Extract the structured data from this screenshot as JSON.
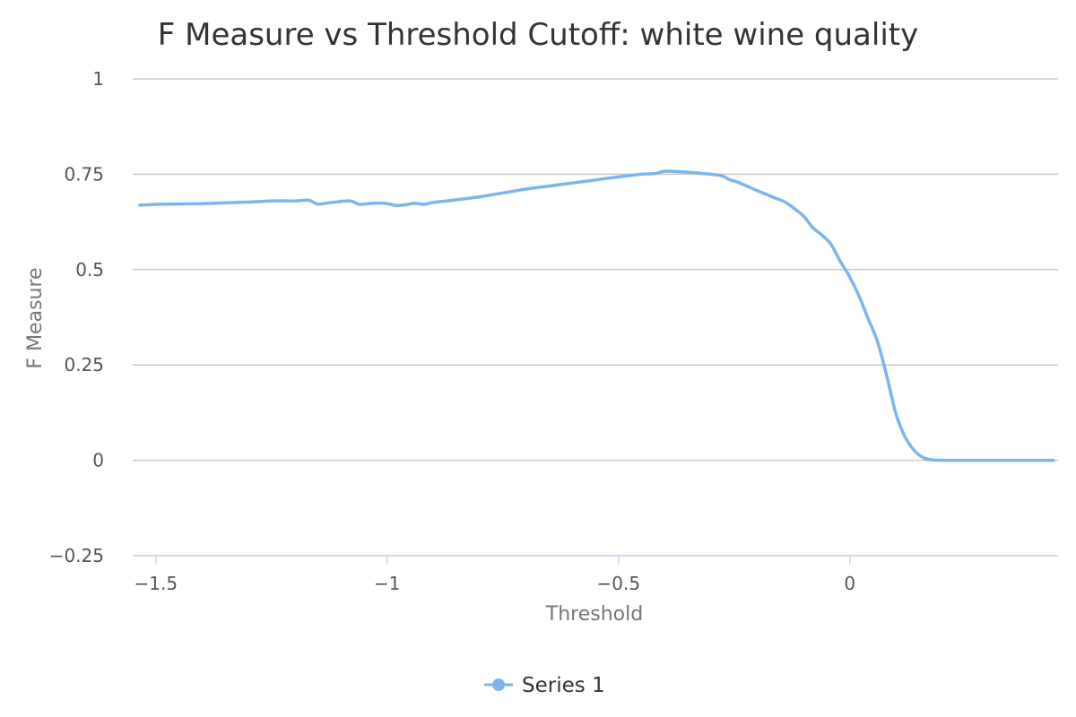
{
  "chart_data": {
    "type": "line",
    "title": "F Measure vs Threshold Cutoff: white wine quality",
    "xlabel": "Threshold",
    "ylabel": "F Measure",
    "xlim": [
      -1.55,
      0.45
    ],
    "ylim": [
      -0.25,
      1
    ],
    "x_ticks": [
      -1.5,
      -1,
      -0.5,
      0
    ],
    "x_tick_labels": [
      "−1.5",
      "−1",
      "−0.5",
      "0"
    ],
    "y_ticks": [
      -0.25,
      0,
      0.25,
      0.5,
      0.75,
      1
    ],
    "y_tick_labels": [
      "−0.25",
      "0",
      "0.25",
      "0.5",
      "0.75",
      "1"
    ],
    "grid": true,
    "legend_position": "bottom-center",
    "series": [
      {
        "name": "Series 1",
        "color": "#7cb5ec",
        "x": [
          -1.535,
          -1.5,
          -1.45,
          -1.4,
          -1.35,
          -1.3,
          -1.25,
          -1.2,
          -1.17,
          -1.15,
          -1.12,
          -1.08,
          -1.06,
          -1.03,
          -1.0,
          -0.98,
          -0.96,
          -0.94,
          -0.92,
          -0.9,
          -0.85,
          -0.8,
          -0.75,
          -0.72,
          -0.7,
          -0.65,
          -0.6,
          -0.55,
          -0.5,
          -0.45,
          -0.42,
          -0.4,
          -0.36,
          -0.32,
          -0.28,
          -0.26,
          -0.24,
          -0.2,
          -0.16,
          -0.14,
          -0.12,
          -0.1,
          -0.08,
          -0.06,
          -0.04,
          -0.02,
          0.0,
          0.02,
          0.04,
          0.06,
          0.08,
          0.1,
          0.12,
          0.14,
          0.16,
          0.18,
          0.2,
          0.25,
          0.3,
          0.35,
          0.4,
          0.44
        ],
        "y": [
          0.669,
          0.671,
          0.672,
          0.673,
          0.675,
          0.677,
          0.68,
          0.68,
          0.682,
          0.672,
          0.676,
          0.68,
          0.671,
          0.674,
          0.673,
          0.668,
          0.67,
          0.674,
          0.671,
          0.676,
          0.683,
          0.691,
          0.701,
          0.707,
          0.711,
          0.719,
          0.727,
          0.735,
          0.743,
          0.75,
          0.752,
          0.758,
          0.756,
          0.752,
          0.747,
          0.736,
          0.728,
          0.707,
          0.687,
          0.677,
          0.66,
          0.64,
          0.61,
          0.59,
          0.565,
          0.52,
          0.48,
          0.43,
          0.37,
          0.31,
          0.22,
          0.12,
          0.06,
          0.025,
          0.006,
          0.001,
          0.0,
          0.0,
          0.0,
          0.0,
          0.0,
          0.0
        ]
      }
    ]
  }
}
